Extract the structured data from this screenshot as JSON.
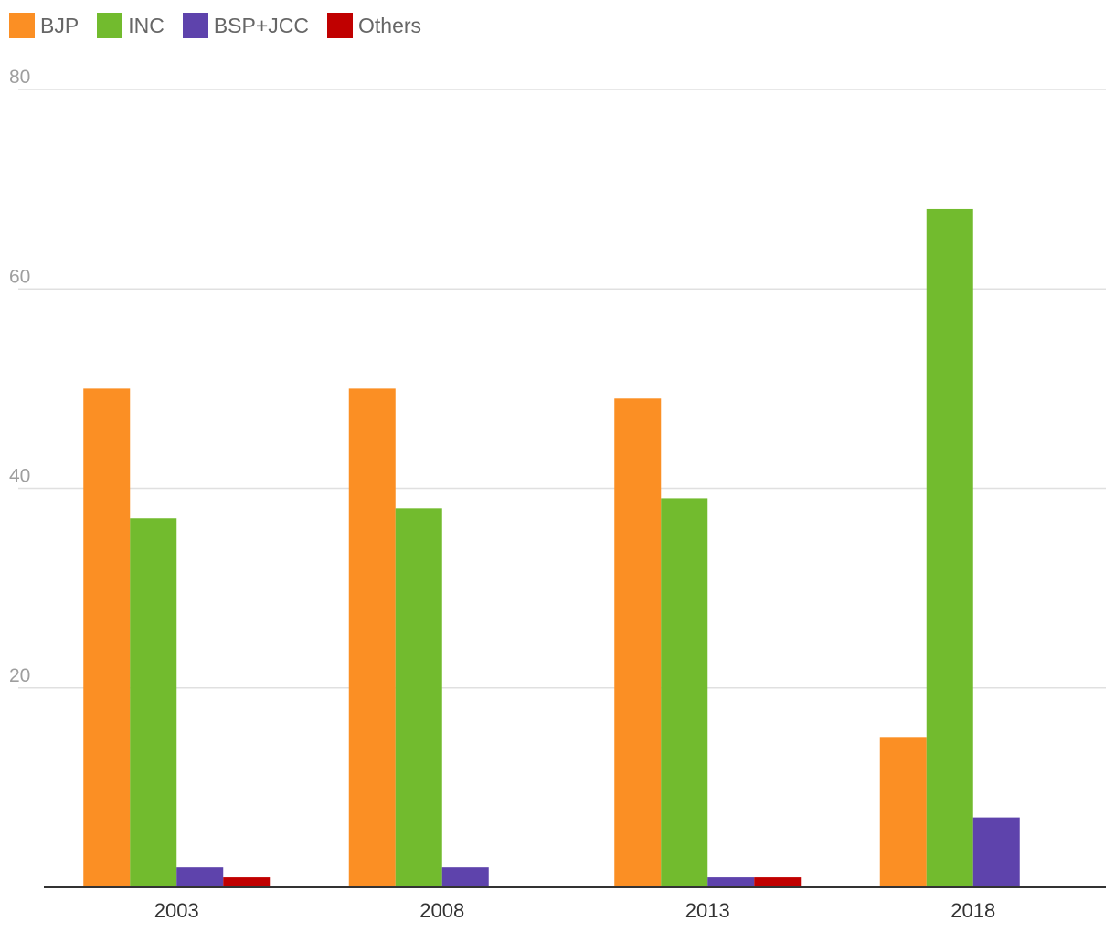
{
  "chart_data": {
    "type": "bar",
    "categories": [
      "2003",
      "2008",
      "2013",
      "2018"
    ],
    "series": [
      {
        "name": "BJP",
        "color": "#fb8f24",
        "values": [
          50,
          50,
          49,
          15
        ]
      },
      {
        "name": "INC",
        "color": "#72bb2e",
        "values": [
          37,
          38,
          39,
          68
        ]
      },
      {
        "name": "BSP+JCC",
        "color": "#5e43ac",
        "values": [
          2,
          2,
          1,
          7
        ]
      },
      {
        "name": "Others",
        "color": "#c00000",
        "values": [
          1,
          0,
          1,
          0
        ]
      }
    ],
    "ylim": [
      0,
      80
    ],
    "yticks": [
      20,
      40,
      60,
      80
    ],
    "grid": true,
    "legend_position": "top-left",
    "title": "",
    "xlabel": "",
    "ylabel": ""
  }
}
